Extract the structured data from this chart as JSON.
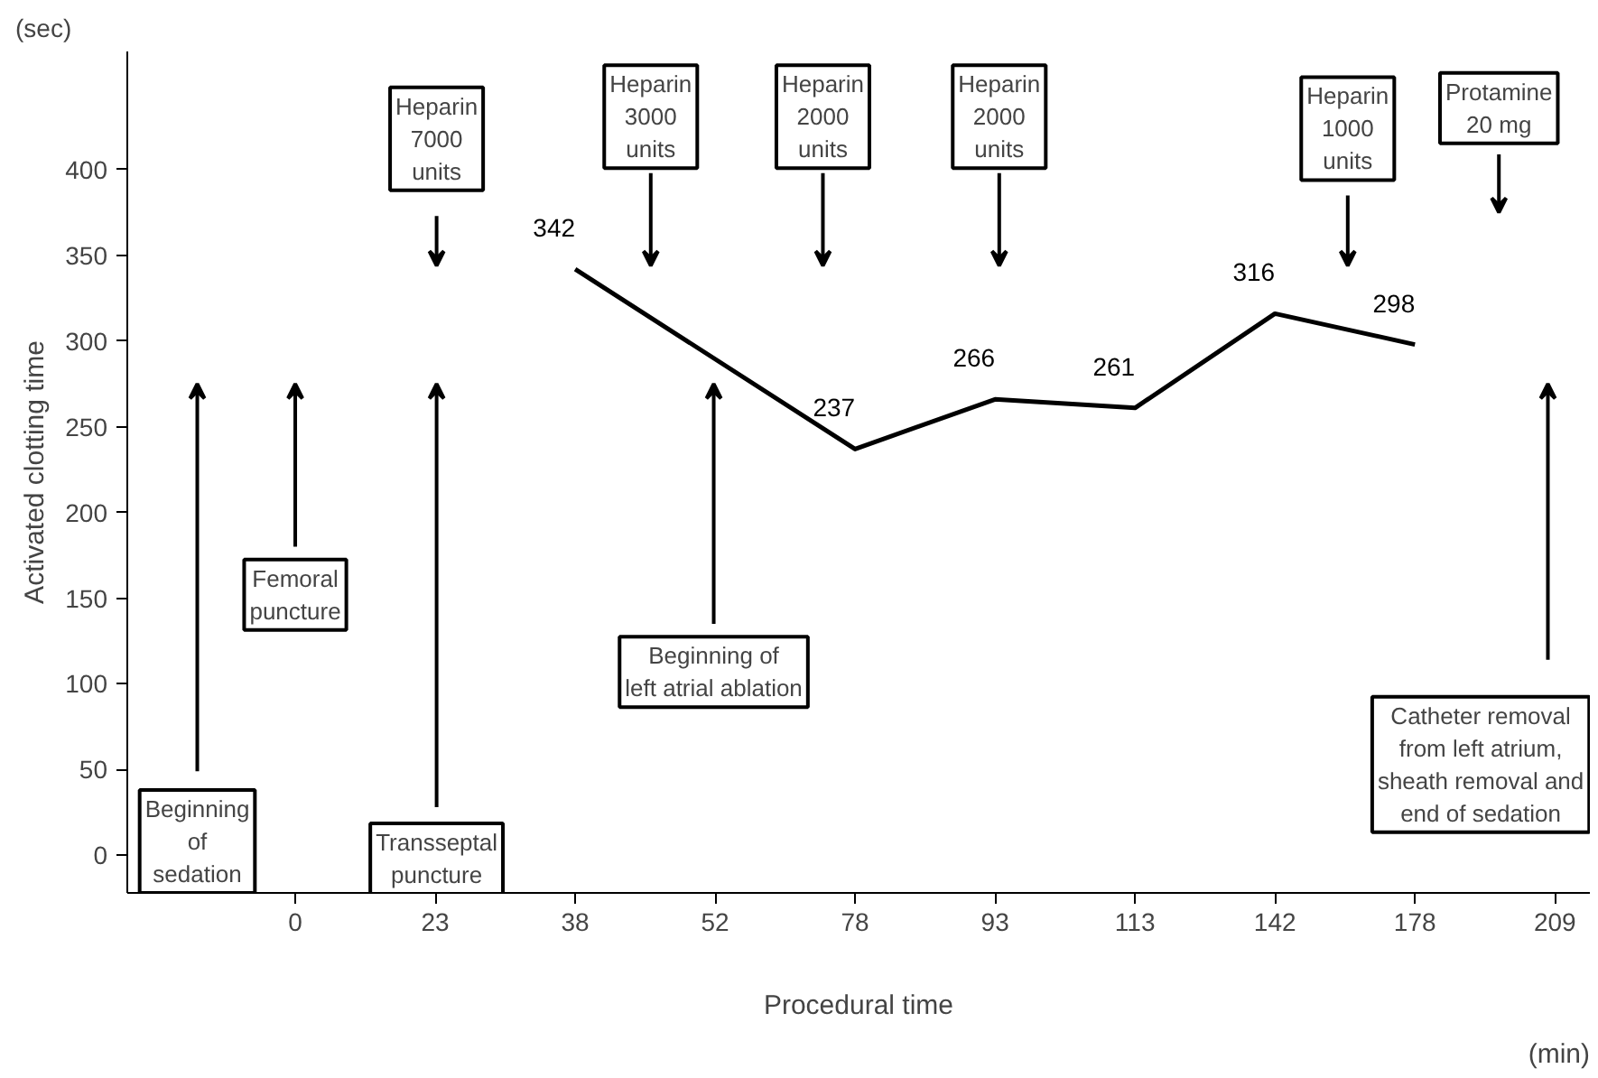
{
  "chart_data": {
    "type": "line",
    "xlabel": "Procedural time",
    "ylabel": "Activated clotting time",
    "categories": [
      "0",
      "23",
      "38",
      "52",
      "78",
      "93",
      "113",
      "142",
      "178",
      "209"
    ],
    "series": [
      {
        "color": "#000000",
        "x": [
          "38",
          "78",
          "93",
          "113",
          "142",
          "178"
        ],
        "values": [
          342,
          237,
          266,
          261,
          316,
          298
        ]
      }
    ],
    "data_labels": true,
    "ylim": [
      -22,
      469
    ],
    "yticks": [
      0,
      50,
      100,
      150,
      200,
      250,
      300,
      350,
      400
    ],
    "grid": false,
    "marker": "none",
    "line_style": "solid",
    "annotations": [
      "Heparin\n7000\nunits",
      "Heparin\n3000\nunits",
      "Heparin\n2000\nunits",
      "Heparin\n2000\nunits",
      "Heparin\n1000\nunits",
      "Protamine\n20 mg",
      "Beginning\nof\nsedation",
      "Femoral\npuncture",
      "Transseptal\npuncture",
      "Beginning of\nleft atrial ablation",
      "Catheter removal\nfrom left atrium,\nsheath removal and\nend of sedation",
      "(sec)",
      "(min)"
    ]
  }
}
